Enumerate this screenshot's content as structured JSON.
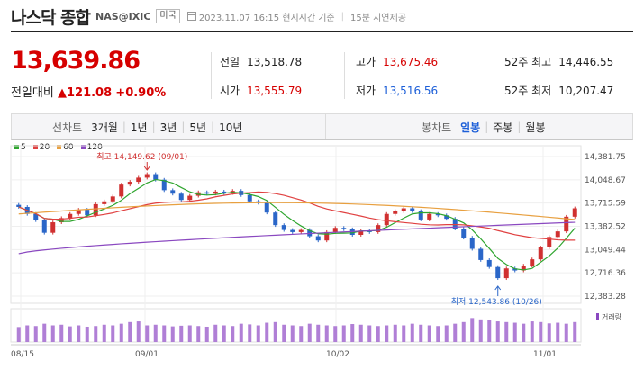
{
  "header": {
    "title": "나스닥 종합",
    "code": "NAS@IXIC",
    "market": "미국",
    "timestamp": "2023.11.07 16:15 현지시간 기준",
    "delay_note": "15분 지연제공"
  },
  "quote": {
    "price": "13,639.86",
    "change_label": "전일대비",
    "change_arrow": "▲",
    "change": "121.08",
    "change_pct": "+0.90%"
  },
  "stats": {
    "prev_label": "전일",
    "prev": "13,518.78",
    "open_label": "시가",
    "open": "13,555.79",
    "high_label": "고가",
    "high": "13,675.46",
    "low_label": "저가",
    "low": "13,516.56",
    "w52_high_label": "52주 최고",
    "w52_high": "14,446.55",
    "w52_low_label": "52주 최저",
    "w52_low": "10,207.47"
  },
  "toolbar": {
    "line_chart": "선차트",
    "periods": [
      "3개월",
      "1년",
      "3년",
      "5년",
      "10년"
    ],
    "candle_chart": "봉차트",
    "candle_periods": [
      "일봉",
      "주봉",
      "월봉"
    ],
    "active_candle": "일봉",
    "divider": "|"
  },
  "legend": {
    "items": [
      {
        "label": "5",
        "color": "#2ea52e"
      },
      {
        "label": "20",
        "color": "#e04040"
      },
      {
        "label": "60",
        "color": "#e8a040"
      },
      {
        "label": "120",
        "color": "#8a48c0"
      }
    ],
    "volume_label": "거래량"
  },
  "chart_data": {
    "type": "candlestick",
    "x_labels": [
      "08/15",
      "09/01",
      "10/02",
      "11/01"
    ],
    "y_ticks": [
      "14,381.75",
      "14,048.67",
      "13,715.59",
      "13,382.52",
      "13,049.44",
      "12,716.36",
      "12,383.28"
    ],
    "ylim": [
      12383.28,
      14381.75
    ],
    "high_annotation": "최고 14,149.62 (09/01)",
    "low_annotation": "최저 12,543.86 (10/26)",
    "up_color": "#d03030",
    "down_color": "#2a66c8",
    "closes": [
      13660,
      13560,
      13470,
      13290,
      13440,
      13500,
      13560,
      13620,
      13540,
      13700,
      13740,
      13810,
      13980,
      14020,
      14080,
      14130,
      14050,
      13900,
      13850,
      13760,
      13820,
      13870,
      13850,
      13880,
      13860,
      13890,
      13830,
      13740,
      13720,
      13580,
      13400,
      13330,
      13300,
      13330,
      13240,
      13180,
      13300,
      13360,
      13340,
      13260,
      13320,
      13300,
      13400,
      13560,
      13600,
      13640,
      13600,
      13480,
      13560,
      13540,
      13490,
      13350,
      13220,
      13060,
      12900,
      12800,
      12640,
      12780,
      12750,
      12820,
      12910,
      13080,
      13230,
      13310,
      13520,
      13640
    ],
    "volumes": [
      0.45,
      0.5,
      0.48,
      0.55,
      0.5,
      0.52,
      0.47,
      0.5,
      0.46,
      0.48,
      0.52,
      0.5,
      0.55,
      0.6,
      0.62,
      0.5,
      0.52,
      0.5,
      0.47,
      0.49,
      0.5,
      0.48,
      0.46,
      0.52,
      0.5,
      0.48,
      0.55,
      0.53,
      0.5,
      0.58,
      0.6,
      0.52,
      0.5,
      0.48,
      0.55,
      0.52,
      0.5,
      0.48,
      0.5,
      0.54,
      0.52,
      0.5,
      0.48,
      0.5,
      0.52,
      0.5,
      0.55,
      0.52,
      0.5,
      0.48,
      0.5,
      0.55,
      0.6,
      0.72,
      0.68,
      0.65,
      0.62,
      0.6,
      0.58,
      0.55,
      0.62,
      0.6,
      0.56,
      0.58,
      0.55,
      0.6
    ]
  }
}
